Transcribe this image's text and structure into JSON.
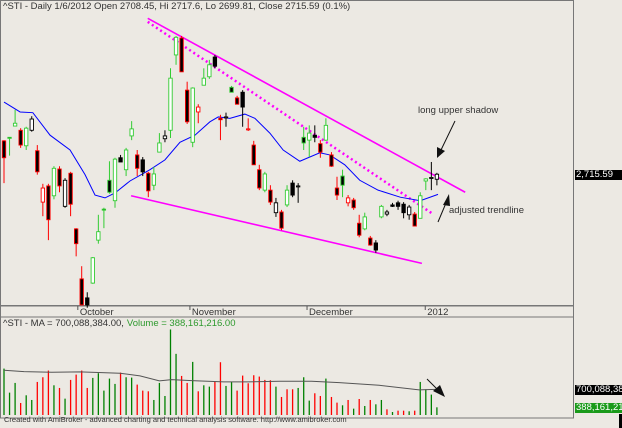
{
  "title": "^STI - Daily 1/6/2012 Open 2708.45, Hi 2717.6, Lo 2699.81, Close 2715.59 (0.1%)",
  "price_label": "2,715.59",
  "volume_header": {
    "ma_text": "^STI - MA = 700,088,384.00,",
    "volume_text": "Volume = 388,161,216.00"
  },
  "volume_axis_labels": {
    "ma": "700,088,384",
    "volume": "388,161,216"
  },
  "annotations": {
    "long_upper_shadow": "long upper shadow",
    "adjusted_trendline": "adjusted trendline"
  },
  "footer": "Created with AmiBroker - advanced charting and technical analysis software. http://www.amibroker.com",
  "colors": {
    "background": "#ECE9E3",
    "trendline": "#FF00FF",
    "ma_price": "#0000FF",
    "volume_up": "#008000",
    "volume_down": "#FF0000",
    "ma_volume": "#555555",
    "candle_up_outline": "#33CC33",
    "candle_down_outline": "#FF0000"
  },
  "chart_data": [
    {
      "type": "candlestick",
      "symbol": "^STI",
      "x_ticks": [
        {
          "label": "October",
          "index": 13.3
        },
        {
          "label": "November",
          "index": 33.5
        },
        {
          "label": "December",
          "index": 54.6
        },
        {
          "label": "2012",
          "index": 75.9
        }
      ],
      "ylim": [
        2533,
        2949
      ],
      "last_close": 2715.59,
      "candles": [
        [
          2763,
          2764,
          2703,
          2739
        ],
        [
          2768,
          2768,
          2742,
          2767
        ],
        [
          2784,
          2807,
          2784,
          2788
        ],
        [
          2778,
          2781,
          2753,
          2757
        ],
        [
          2756,
          2783,
          2750,
          2781
        ],
        [
          2778,
          2798,
          2776,
          2794
        ],
        [
          2749,
          2757,
          2715,
          2719
        ],
        [
          2676,
          2702,
          2656,
          2696
        ],
        [
          2699,
          2702,
          2622,
          2651
        ],
        [
          2685,
          2727,
          2680,
          2724
        ],
        [
          2723,
          2727,
          2690,
          2699
        ],
        [
          2670,
          2710,
          2668,
          2707
        ],
        [
          2717,
          2719,
          2656,
          2673
        ],
        [
          2638,
          2639,
          2599,
          2617
        ],
        [
          2567,
          2585,
          2530,
          2530
        ],
        [
          2540,
          2548,
          2526,
          2530
        ],
        [
          2561,
          2598,
          2560,
          2597
        ],
        [
          2622,
          2658,
          2617,
          2634
        ],
        [
          2666,
          2668,
          2639,
          2665
        ],
        [
          2707,
          2734,
          2688,
          2690
        ],
        [
          2678,
          2739,
          2668,
          2737
        ],
        [
          2739,
          2743,
          2733,
          2733
        ],
        [
          2722,
          2753,
          2713,
          2750
        ],
        [
          2770,
          2791,
          2764,
          2780
        ],
        [
          2743,
          2750,
          2713,
          2724
        ],
        [
          2736,
          2740,
          2713,
          2719
        ],
        [
          2717,
          2719,
          2683,
          2692
        ],
        [
          2700,
          2726,
          2693,
          2716
        ],
        [
          2747,
          2774,
          2747,
          2760
        ],
        [
          2766,
          2778,
          2761,
          2770
        ],
        [
          2778,
          2866,
          2767,
          2852
        ],
        [
          2885,
          2912,
          2871,
          2910
        ],
        [
          2909,
          2912,
          2861,
          2861
        ],
        [
          2835,
          2847,
          2787,
          2790
        ],
        [
          2761,
          2839,
          2754,
          2838
        ],
        [
          2804,
          2815,
          2788,
          2811
        ],
        [
          2842,
          2866,
          2842,
          2852
        ],
        [
          2854,
          2878,
          2851,
          2871
        ],
        [
          2882,
          2885,
          2866,
          2869
        ],
        [
          2795,
          2800,
          2764,
          2793
        ],
        [
          2797,
          2803,
          2783,
          2797
        ],
        [
          2839,
          2841,
          2832,
          2832
        ],
        [
          2824,
          2827,
          2815,
          2815
        ],
        [
          2832,
          2835,
          2783,
          2811
        ],
        [
          2780,
          2795,
          2777,
          2780
        ],
        [
          2757,
          2763,
          2729,
          2729
        ],
        [
          2722,
          2729,
          2693,
          2696
        ],
        [
          2693,
          2719,
          2690,
          2716
        ],
        [
          2693,
          2700,
          2672,
          2676
        ],
        [
          2661,
          2682,
          2655,
          2675
        ],
        [
          2662,
          2665,
          2636,
          2639
        ],
        [
          2672,
          2700,
          2669,
          2693
        ],
        [
          2703,
          2707,
          2683,
          2686
        ],
        [
          2699,
          2703,
          2675,
          2699
        ],
        [
          2768,
          2783,
          2750,
          2760
        ],
        [
          2764,
          2785,
          2740,
          2774
        ],
        [
          2771,
          2785,
          2761,
          2768
        ],
        [
          2759,
          2764,
          2739,
          2747
        ],
        [
          2764,
          2795,
          2763,
          2785
        ],
        [
          2743,
          2747,
          2726,
          2727
        ],
        [
          2696,
          2712,
          2679,
          2686
        ],
        [
          2713,
          2722,
          2683,
          2700
        ],
        [
          2675,
          2686,
          2670,
          2682
        ],
        [
          2679,
          2682,
          2665,
          2668
        ],
        [
          2646,
          2658,
          2626,
          2629
        ],
        [
          2638,
          2661,
          2636,
          2655
        ],
        [
          2625,
          2628,
          2614,
          2615
        ],
        [
          2618,
          2622,
          2604,
          2608
        ],
        [
          2655,
          2672,
          2653,
          2670
        ],
        [
          2659,
          2665,
          2656,
          2662
        ],
        [
          2672,
          2675,
          2669,
          2670
        ],
        [
          2675,
          2678,
          2665,
          2670
        ],
        [
          2673,
          2676,
          2653,
          2661
        ],
        [
          2658,
          2672,
          2651,
          2669
        ],
        [
          2659,
          2662,
          2642,
          2642
        ],
        [
          2653,
          2690,
          2653,
          2685
        ],
        [
          2706,
          2710,
          2693,
          2709
        ],
        [
          2710,
          2733,
          2693,
          2711
        ],
        [
          2708.45,
          2717.6,
          2699.81,
          2715.59
        ]
      ],
      "moving_average": [
        [
          0,
          2818
        ],
        [
          2.9,
          2804
        ],
        [
          5.2,
          2803
        ],
        [
          8.3,
          2771
        ],
        [
          11.9,
          2750
        ],
        [
          14.6,
          2715
        ],
        [
          16.4,
          2686
        ],
        [
          18.2,
          2682
        ],
        [
          20,
          2689
        ],
        [
          22.7,
          2706
        ],
        [
          26.3,
          2722
        ],
        [
          29,
          2736
        ],
        [
          31.7,
          2761
        ],
        [
          34.4,
          2771
        ],
        [
          37.1,
          2790
        ],
        [
          38.6,
          2797
        ],
        [
          40.7,
          2795
        ],
        [
          43.4,
          2801
        ],
        [
          45.2,
          2795
        ],
        [
          47.9,
          2774
        ],
        [
          50.3,
          2750
        ],
        [
          53.3,
          2734
        ],
        [
          56.9,
          2746
        ],
        [
          58.7,
          2743
        ],
        [
          61.4,
          2729
        ],
        [
          64.1,
          2707
        ],
        [
          67.4,
          2693
        ],
        [
          71.4,
          2683
        ],
        [
          75,
          2678
        ],
        [
          78.2,
          2687
        ]
      ],
      "trendlines": [
        {
          "style": "solid",
          "from": [
            25.9,
            2937
          ],
          "to": [
            83.1,
            2690
          ]
        },
        {
          "style": "dotted",
          "from": [
            25.9,
            2932
          ],
          "to": [
            77.3,
            2659
          ]
        },
        {
          "style": "solid",
          "from": [
            22.9,
            2685
          ],
          "to": [
            75.3,
            2589
          ]
        }
      ]
    },
    {
      "type": "bar",
      "title": "Volume",
      "units": "millions",
      "ylim": [
        255,
        1925
      ],
      "volume": [
        1058,
        642,
        810,
        463,
        596,
        515,
        827,
        908,
        1024,
        769,
        723,
        538,
        862,
        954,
        1024,
        723,
        897,
        978,
        677,
        885,
        793,
        989,
        908,
        902,
        781,
        677,
        665,
        515,
        810,
        584,
        1735,
        1313,
        931,
        810,
        1174,
        665,
        769,
        746,
        827,
        1168,
        758,
        827,
        677,
        937,
        804,
        943,
        920,
        862,
        856,
        746,
        567,
        700,
        700,
        723,
        908,
        504,
        631,
        584,
        885,
        567,
        469,
        423,
        515,
        365,
        532,
        411,
        515,
        440,
        515,
        353,
        307,
        330,
        330,
        319,
        330,
        827,
        700,
        608,
        388.161216
      ],
      "direction": [
        "up",
        "up",
        "up",
        "down",
        "up",
        "up",
        "down",
        "down",
        "down",
        "up",
        "down",
        "up",
        "down",
        "down",
        "down",
        "down",
        "up",
        "up",
        "up",
        "up",
        "up",
        "down",
        "up",
        "up",
        "down",
        "down",
        "down",
        "up",
        "up",
        "up",
        "up",
        "up",
        "down",
        "down",
        "up",
        "down",
        "up",
        "up",
        "down",
        "down",
        "up",
        "up",
        "down",
        "down",
        "down",
        "down",
        "down",
        "down",
        "down",
        "up",
        "down",
        "down",
        "down",
        "up",
        "up",
        "up",
        "down",
        "down",
        "up",
        "down",
        "down",
        "up",
        "down",
        "up",
        "down",
        "up",
        "down",
        "up",
        "up",
        "down",
        "up",
        "down",
        "down",
        "up",
        "down",
        "up",
        "up",
        "up",
        "up"
      ],
      "moving_average": [
        [
          0,
          1030
        ],
        [
          3.6,
          1006
        ],
        [
          8.6,
          995
        ],
        [
          13.7,
          1001
        ],
        [
          20.9,
          978
        ],
        [
          24.5,
          931
        ],
        [
          28,
          845
        ],
        [
          30.2,
          868
        ],
        [
          33.8,
          850
        ],
        [
          39.6,
          827
        ],
        [
          43.9,
          827
        ],
        [
          49.6,
          839
        ],
        [
          55.4,
          839
        ],
        [
          60.4,
          816
        ],
        [
          67.6,
          769
        ],
        [
          74.8,
          689
        ],
        [
          78.4,
          700.088384
        ]
      ]
    }
  ]
}
